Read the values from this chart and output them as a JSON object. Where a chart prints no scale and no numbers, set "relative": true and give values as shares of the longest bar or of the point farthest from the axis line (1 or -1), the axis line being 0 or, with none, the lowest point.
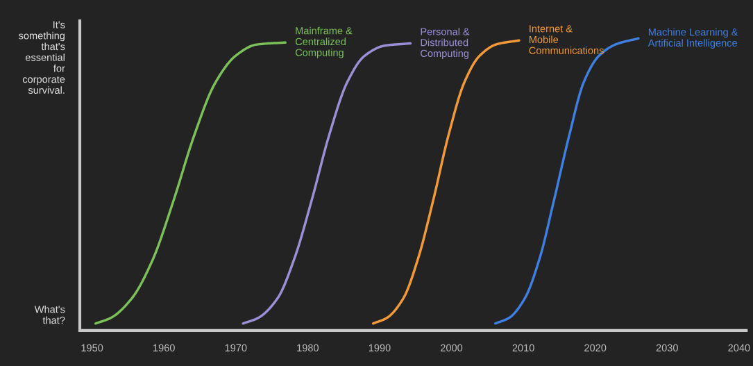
{
  "chart_data": {
    "type": "line",
    "relative": true,
    "xlim": [
      1948.3,
      2041
    ],
    "xticks": [
      1950,
      1960,
      1970,
      1980,
      1990,
      2000,
      2010,
      2020,
      2030,
      2040
    ],
    "grid": false,
    "legend": false,
    "marker": "none",
    "line_style": "solid",
    "annotations": [
      "It's\nsomething\nthat's\nessential\nfor\ncorporate\nsurvival.",
      "What's\nthat?"
    ],
    "series": [
      {
        "name": "Mainframe &\nCentralized\nComputing",
        "color": "#7cc05a",
        "x": [
          1950.5,
          1952.6,
          1955.5,
          1958.4,
          1961.3,
          1964.2,
          1967.1,
          1970.0,
          1972.9,
          1976.9
        ],
        "values": [
          0.024,
          0.043,
          0.109,
          0.24,
          0.442,
          0.667,
          0.846,
          0.941,
          0.979,
          0.986
        ]
      },
      {
        "name": "Personal &\nDistributed\nComputing",
        "color": "#9b8fd8",
        "x": [
          1971.0,
          1973.1,
          1975.8,
          1978.2,
          1980.6,
          1983.0,
          1985.5,
          1987.9,
          1990.7,
          1994.3
        ],
        "values": [
          0.024,
          0.043,
          0.11,
          0.25,
          0.45,
          0.67,
          0.85,
          0.94,
          0.975,
          0.983
        ]
      },
      {
        "name": "Internet &\nMobile\nCommunications",
        "color": "#f29a3a",
        "x": [
          1989.1,
          1991.0,
          1993.3,
          1995.4,
          1997.5,
          1999.6,
          2001.8,
          2003.9,
          2006.3,
          2009.4
        ],
        "values": [
          0.024,
          0.043,
          0.11,
          0.25,
          0.45,
          0.67,
          0.85,
          0.94,
          0.98,
          0.993
        ]
      },
      {
        "name": "Machine Learning &\nArtificial Intelligence",
        "color": "#3f7fe0",
        "x": [
          2006.1,
          2008.0,
          2010.2,
          2012.3,
          2014.3,
          2016.4,
          2018.4,
          2020.5,
          2022.9,
          2026.0
        ],
        "values": [
          0.024,
          0.043,
          0.11,
          0.25,
          0.45,
          0.67,
          0.85,
          0.94,
          0.98,
          1.0
        ]
      }
    ]
  }
}
